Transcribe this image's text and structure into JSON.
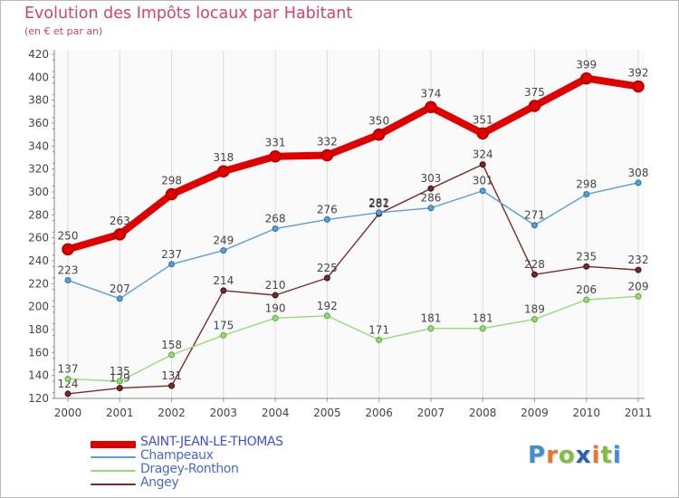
{
  "header": {
    "title": "Evolution des Impôts locaux par Habitant",
    "subtitle": "(en € et par an)"
  },
  "logo": {
    "text": "Proxiti",
    "letter_colors": [
      "#3d8fd6",
      "#e8792b",
      "#7fbf3f",
      "#2d5fb5",
      "#e8792b",
      "#7fbf3f",
      "#3d8fd6"
    ]
  },
  "chart_data": {
    "type": "line",
    "title": "Evolution des Impôts locaux par Habitant",
    "subtitle": "(en € et par an)",
    "xlabel": "",
    "ylabel": "",
    "x": [
      "2000",
      "2001",
      "2002",
      "2003",
      "2004",
      "2005",
      "2006",
      "2007",
      "2008",
      "2009",
      "2010",
      "2011"
    ],
    "ylim": [
      120,
      420
    ],
    "yticks": [
      120,
      140,
      160,
      180,
      200,
      220,
      240,
      260,
      280,
      300,
      320,
      340,
      360,
      380,
      400,
      420
    ],
    "grid": "vertical",
    "legend_position": "bottom-left",
    "series": [
      {
        "name": "SAINT-JEAN-LE-THOMAS",
        "color": "#e00000",
        "values": [
          250,
          263,
          298,
          318,
          331,
          332,
          350,
          374,
          351,
          375,
          399,
          392
        ]
      },
      {
        "name": "Champeaux",
        "color": "#5a9fd4",
        "values": [
          223,
          207,
          237,
          249,
          268,
          276,
          282,
          286,
          301,
          271,
          298,
          308
        ]
      },
      {
        "name": "Dragey-Ronthon",
        "color": "#99d97a",
        "values": [
          137,
          135,
          158,
          175,
          190,
          192,
          171,
          181,
          181,
          189,
          206,
          209
        ]
      },
      {
        "name": "Angey",
        "color": "#7a2a2a",
        "values": [
          124,
          129,
          131,
          214,
          210,
          225,
          281,
          303,
          324,
          228,
          235,
          232
        ]
      }
    ]
  }
}
